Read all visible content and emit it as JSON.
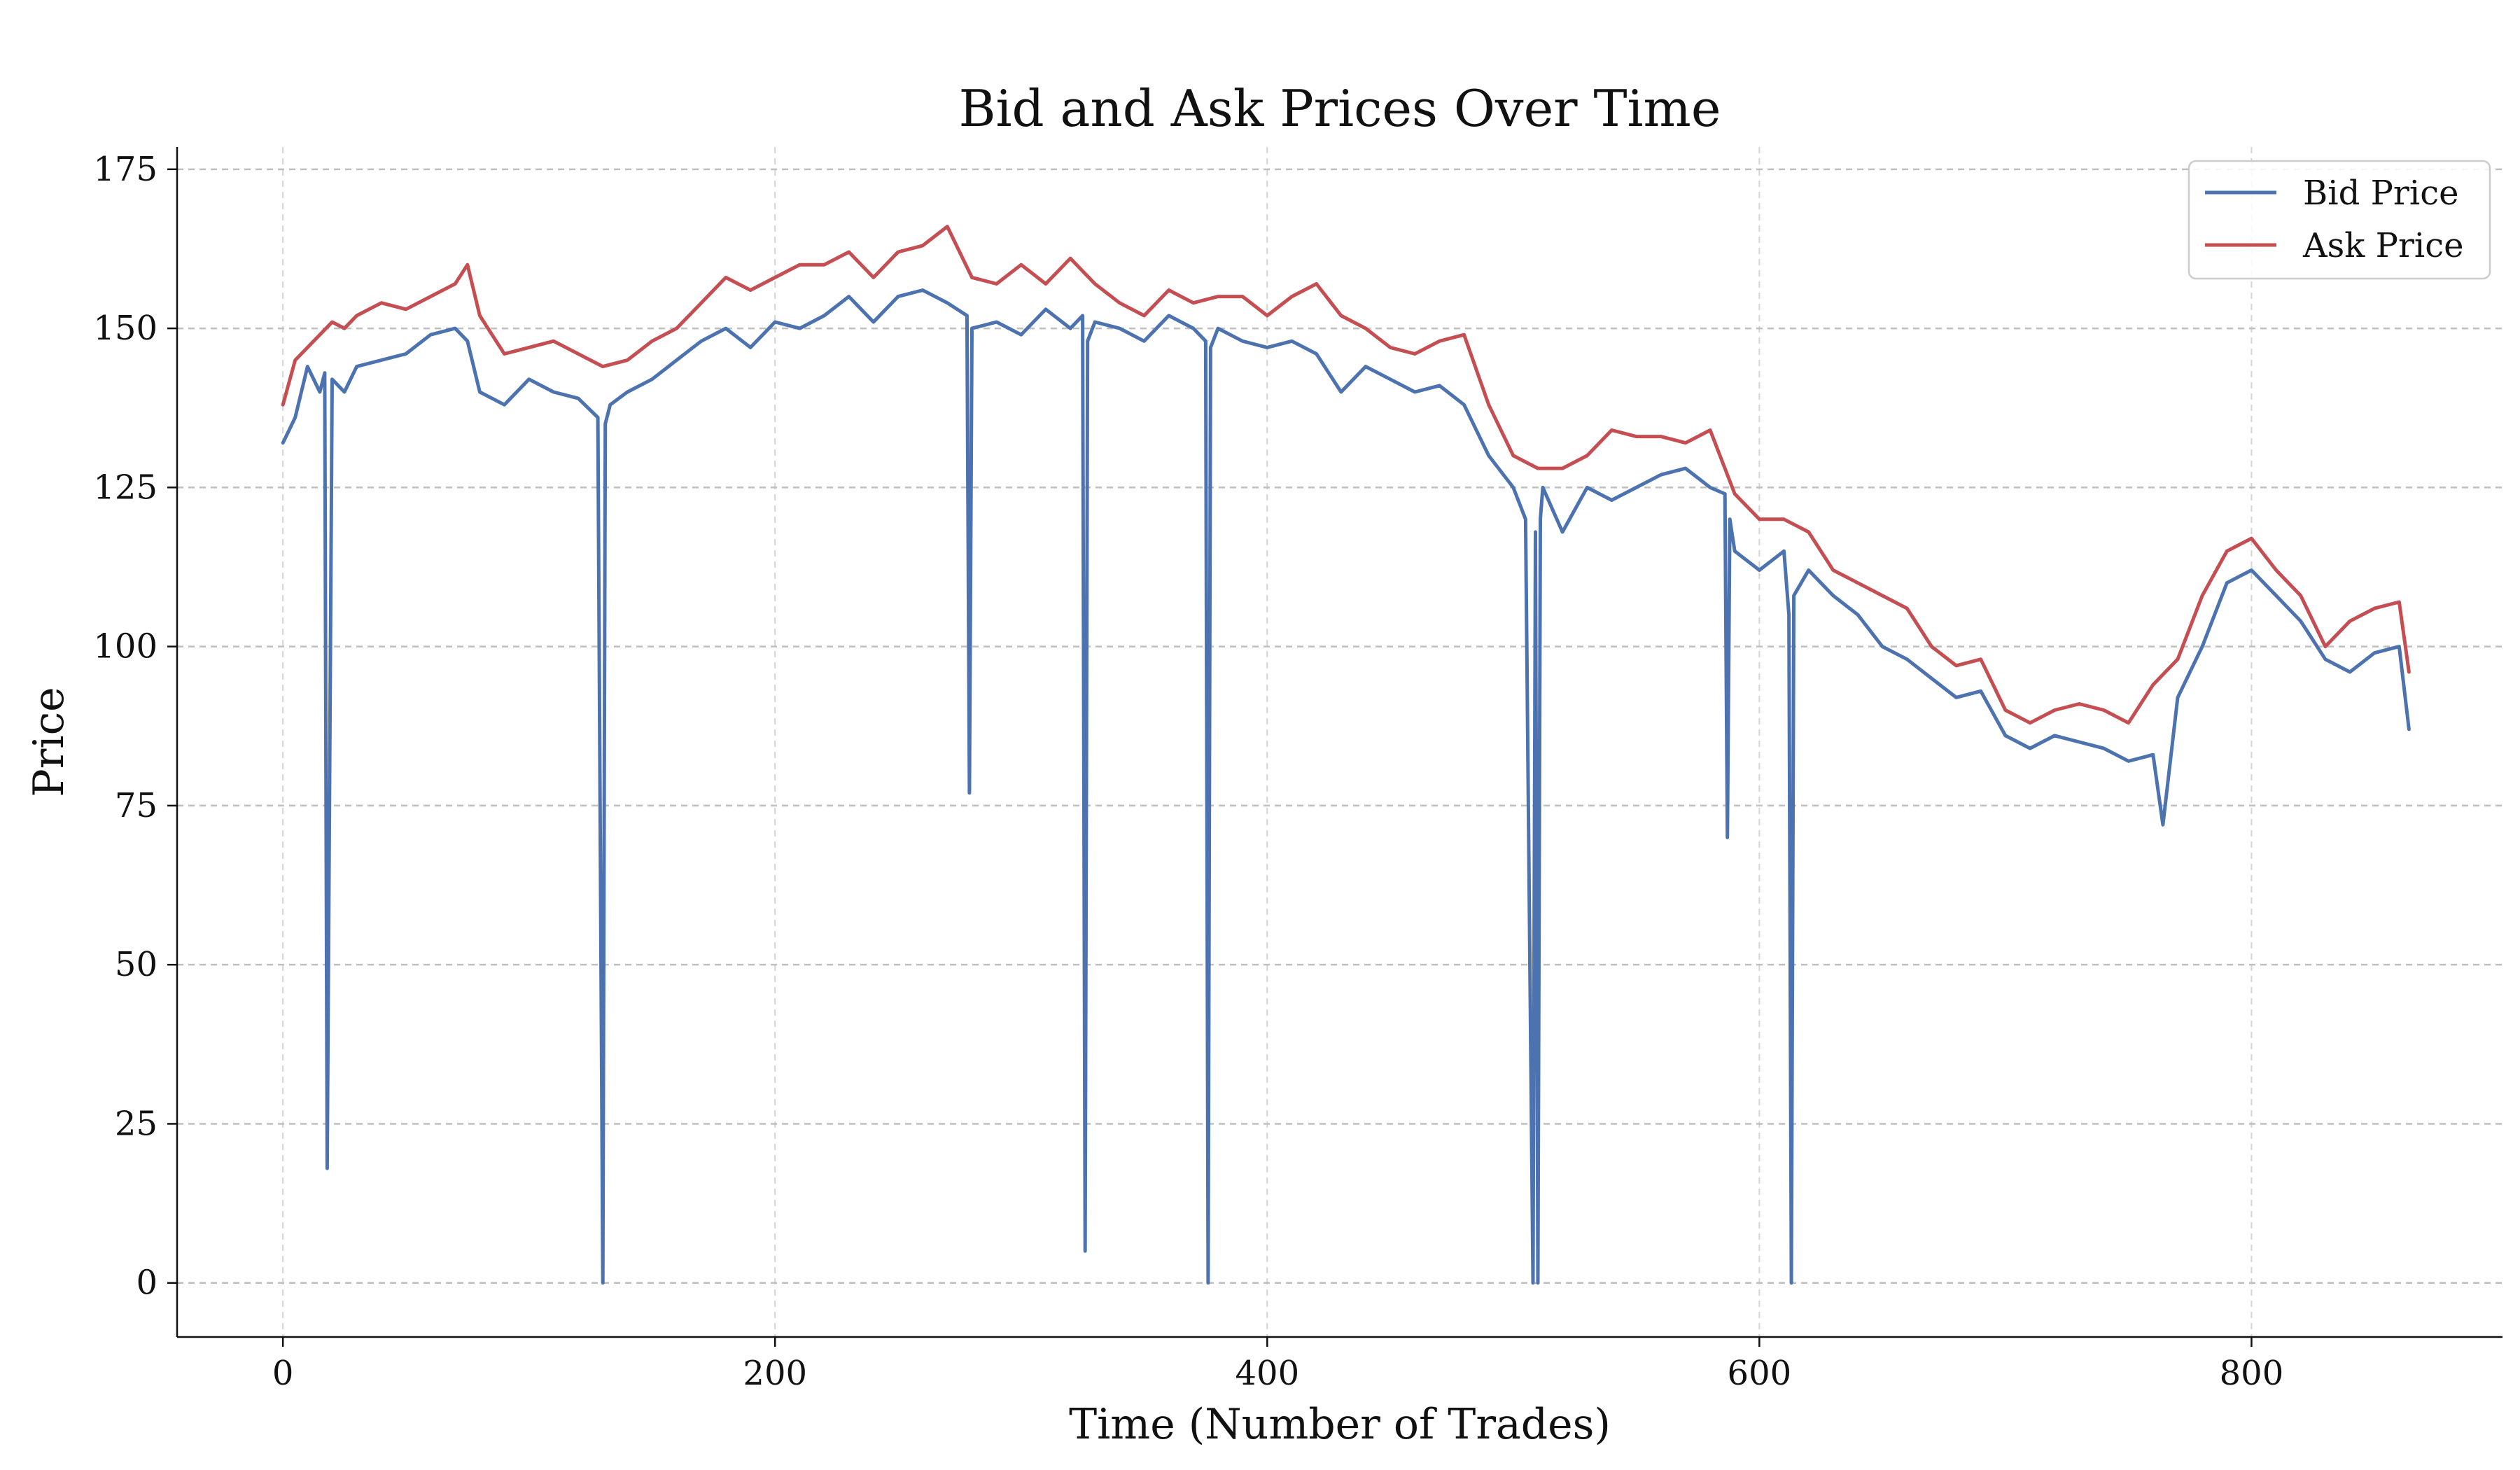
{
  "chart_data": {
    "type": "line",
    "title": "Bid and Ask Prices Over Time",
    "xlabel": "Time (Number of Trades)",
    "ylabel": "Price",
    "xlim": [
      -43,
      902
    ],
    "ylim": [
      -8.5,
      178.5
    ],
    "xticks": [
      0,
      200,
      400,
      600,
      800
    ],
    "yticks": [
      0,
      25,
      50,
      75,
      100,
      125,
      150,
      175
    ],
    "grid": true,
    "legend_position": "top-right",
    "series": [
      {
        "name": "Bid Price",
        "color": "#4c72b0",
        "x": [
          0,
          5,
          10,
          15,
          17,
          18,
          20,
          25,
          30,
          40,
          50,
          60,
          70,
          75,
          80,
          90,
          100,
          110,
          120,
          128,
          130,
          131,
          133,
          140,
          150,
          160,
          170,
          180,
          190,
          200,
          210,
          220,
          230,
          240,
          250,
          260,
          270,
          278,
          279,
          280,
          290,
          300,
          310,
          320,
          325,
          326,
          327,
          330,
          340,
          350,
          360,
          370,
          375,
          376,
          377,
          380,
          390,
          400,
          410,
          420,
          430,
          440,
          450,
          460,
          470,
          480,
          490,
          500,
          505,
          508,
          509,
          510,
          511,
          512,
          520,
          530,
          540,
          550,
          560,
          570,
          580,
          586,
          587,
          588,
          590,
          600,
          610,
          612,
          613,
          614,
          620,
          630,
          640,
          650,
          660,
          670,
          680,
          690,
          700,
          710,
          720,
          730,
          740,
          750,
          760,
          764,
          770,
          780,
          790,
          800,
          810,
          820,
          830,
          840,
          850,
          860,
          864
        ],
        "y": [
          132,
          136,
          144,
          140,
          143,
          18,
          142,
          140,
          144,
          145,
          146,
          149,
          150,
          148,
          140,
          138,
          142,
          140,
          139,
          136,
          0,
          135,
          138,
          140,
          142,
          145,
          148,
          150,
          147,
          151,
          150,
          152,
          155,
          151,
          155,
          156,
          154,
          152,
          77,
          150,
          151,
          149,
          153,
          150,
          152,
          5,
          148,
          151,
          150,
          148,
          152,
          150,
          148,
          0,
          147,
          150,
          148,
          147,
          148,
          146,
          140,
          144,
          142,
          140,
          141,
          138,
          130,
          125,
          120,
          0,
          118,
          0,
          120,
          125,
          118,
          125,
          123,
          125,
          127,
          128,
          125,
          124,
          70,
          120,
          115,
          112,
          115,
          105,
          0,
          108,
          112,
          108,
          105,
          100,
          98,
          95,
          92,
          93,
          86,
          84,
          86,
          85,
          84,
          82,
          83,
          72,
          92,
          100,
          110,
          112,
          108,
          104,
          98,
          96,
          99,
          100,
          87
        ]
      },
      {
        "name": "Ask Price",
        "color": "#c44e52",
        "x": [
          0,
          5,
          10,
          15,
          20,
          25,
          30,
          40,
          50,
          60,
          70,
          75,
          80,
          90,
          100,
          110,
          120,
          130,
          140,
          150,
          160,
          170,
          180,
          190,
          200,
          210,
          220,
          230,
          240,
          250,
          260,
          270,
          280,
          290,
          300,
          310,
          320,
          330,
          340,
          350,
          360,
          370,
          380,
          390,
          400,
          410,
          420,
          430,
          440,
          450,
          460,
          470,
          480,
          490,
          500,
          510,
          520,
          530,
          540,
          550,
          560,
          570,
          580,
          590,
          600,
          610,
          620,
          630,
          640,
          650,
          660,
          670,
          680,
          690,
          700,
          710,
          720,
          730,
          740,
          750,
          760,
          770,
          780,
          790,
          800,
          810,
          820,
          830,
          840,
          850,
          860,
          864
        ],
        "y": [
          138,
          145,
          147,
          149,
          151,
          150,
          152,
          154,
          153,
          155,
          157,
          160,
          152,
          146,
          147,
          148,
          146,
          144,
          145,
          148,
          150,
          154,
          158,
          156,
          158,
          160,
          160,
          162,
          158,
          162,
          163,
          166,
          158,
          157,
          160,
          157,
          161,
          157,
          154,
          152,
          156,
          154,
          155,
          155,
          152,
          155,
          157,
          152,
          150,
          147,
          146,
          148,
          149,
          138,
          130,
          128,
          128,
          130,
          134,
          133,
          133,
          132,
          134,
          124,
          120,
          120,
          118,
          112,
          110,
          108,
          106,
          100,
          97,
          98,
          90,
          88,
          90,
          91,
          90,
          88,
          94,
          98,
          108,
          115,
          117,
          112,
          108,
          100,
          104,
          106,
          107,
          96
        ]
      }
    ]
  }
}
